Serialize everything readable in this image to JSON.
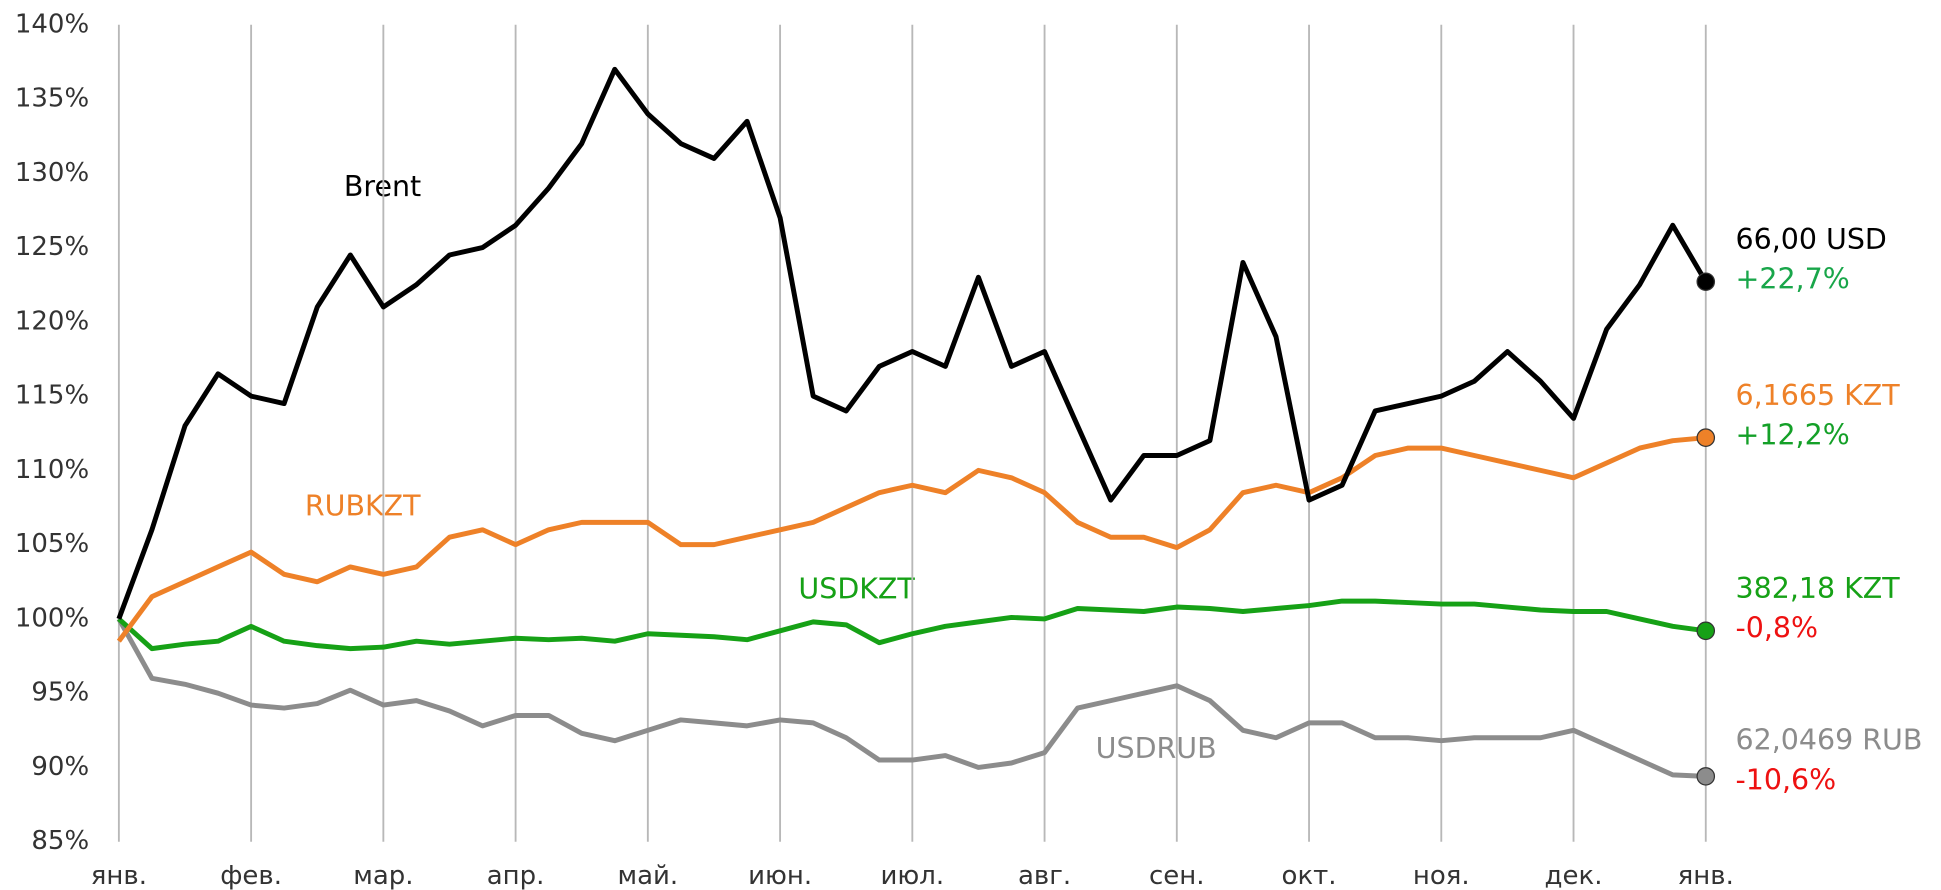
{
  "chart_data": {
    "type": "line",
    "x": [
      0,
      0.25,
      0.5,
      0.75,
      1,
      1.25,
      1.5,
      1.75,
      2,
      2.25,
      2.5,
      2.75,
      3,
      3.25,
      3.5,
      3.75,
      4,
      4.25,
      4.5,
      4.75,
      5,
      5.25,
      5.5,
      5.75,
      6,
      6.25,
      6.5,
      6.75,
      7,
      7.25,
      7.5,
      7.75,
      8,
      8.25,
      8.5,
      8.75,
      9,
      9.25,
      9.5,
      9.75,
      10,
      10.25,
      10.5,
      10.75,
      11,
      11.25,
      11.5,
      11.75,
      12
    ],
    "xlim": [
      0,
      12
    ],
    "xticks": [
      {
        "value": 0,
        "label": "янв."
      },
      {
        "value": 1,
        "label": "фев."
      },
      {
        "value": 2,
        "label": "мар."
      },
      {
        "value": 3,
        "label": "апр."
      },
      {
        "value": 4,
        "label": "май."
      },
      {
        "value": 5,
        "label": "июн."
      },
      {
        "value": 6,
        "label": "июл."
      },
      {
        "value": 7,
        "label": "авг."
      },
      {
        "value": 8,
        "label": "сен."
      },
      {
        "value": 9,
        "label": "окт."
      },
      {
        "value": 10,
        "label": "ноя."
      },
      {
        "value": 11,
        "label": "дек."
      },
      {
        "value": 12,
        "label": "янв."
      }
    ],
    "ylim": [
      85,
      140
    ],
    "yticks": [
      {
        "value": 85,
        "label": "85%"
      },
      {
        "value": 90,
        "label": "90%"
      },
      {
        "value": 95,
        "label": "95%"
      },
      {
        "value": 100,
        "label": "100%"
      },
      {
        "value": 105,
        "label": "105%"
      },
      {
        "value": 110,
        "label": "110%"
      },
      {
        "value": 115,
        "label": "115%"
      },
      {
        "value": 120,
        "label": "120%"
      },
      {
        "value": 125,
        "label": "125%"
      },
      {
        "value": 130,
        "label": "130%"
      },
      {
        "value": 135,
        "label": "135%"
      },
      {
        "value": 140,
        "label": "140%"
      }
    ],
    "grid": "x",
    "series": [
      {
        "name": "Brent",
        "color": "#000000",
        "end_label": "66,00 USD",
        "change_label": "+22,7%",
        "change_color": "#19a64a",
        "values": [
          100,
          106,
          113,
          116.5,
          115,
          114.5,
          121,
          124.5,
          121,
          122.5,
          124.5,
          125,
          126.5,
          129,
          132,
          137,
          134,
          132,
          131,
          133.5,
          127,
          115,
          114,
          117,
          118,
          117,
          123,
          117,
          118,
          113,
          108,
          111,
          111,
          112,
          124,
          119,
          108,
          109,
          114,
          114.5,
          115,
          116,
          118,
          116,
          113.5,
          119.5,
          122.5,
          126.5,
          122.7
        ]
      },
      {
        "name": "RUBKZT",
        "color": "#ee8128",
        "end_label": "6,1665 KZT",
        "change_label": "+12,2%",
        "change_color": "#14a028",
        "values": [
          98.5,
          101.5,
          102.5,
          103.5,
          104.5,
          103,
          102.5,
          103.5,
          103,
          103.5,
          105.5,
          106,
          105,
          106,
          106.5,
          106.5,
          106.5,
          105,
          105,
          105.5,
          106,
          106.5,
          107.5,
          108.5,
          109,
          108.5,
          110,
          109.5,
          108.5,
          106.5,
          105.5,
          105.5,
          104.8,
          106,
          108.5,
          109,
          108.5,
          109.5,
          111,
          111.5,
          111.5,
          111,
          110.5,
          110,
          109.5,
          110.5,
          111.5,
          112,
          112.2
        ]
      },
      {
        "name": "USDKZT",
        "color": "#16a116",
        "end_label": "382,18 KZT",
        "change_label": "-0,8%",
        "change_color": "#ee1111",
        "values": [
          100,
          98,
          98.3,
          98.5,
          99.5,
          98.5,
          98.2,
          98,
          98.1,
          98.5,
          98.3,
          98.5,
          98.7,
          98.6,
          98.7,
          98.5,
          99,
          98.9,
          98.8,
          98.6,
          99.2,
          99.8,
          99.6,
          98.4,
          99,
          99.5,
          99.8,
          100.1,
          100,
          100.7,
          100.6,
          100.5,
          100.8,
          100.7,
          100.5,
          100.7,
          100.9,
          101.2,
          101.2,
          101.1,
          101,
          101,
          100.8,
          100.6,
          100.5,
          100.5,
          100,
          99.5,
          99.2
        ]
      },
      {
        "name": "USDRUB",
        "color": "#8c8c8c",
        "end_label": "62,0469 RUB",
        "change_label": "-10,6%",
        "change_color": "#ee1111",
        "values": [
          100,
          96,
          95.6,
          95,
          94.2,
          94,
          94.3,
          95.2,
          94.2,
          94.5,
          93.8,
          92.8,
          93.5,
          93.5,
          92.3,
          91.8,
          92.5,
          93.2,
          93,
          92.8,
          93.2,
          93,
          92,
          90.5,
          90.5,
          90.8,
          90,
          90.3,
          91,
          94,
          94.5,
          95,
          95.5,
          94.5,
          92.5,
          92,
          93,
          93,
          92,
          92,
          91.8,
          92,
          92,
          92,
          92.5,
          91.5,
          90.5,
          89.5,
          89.4
        ]
      }
    ]
  }
}
